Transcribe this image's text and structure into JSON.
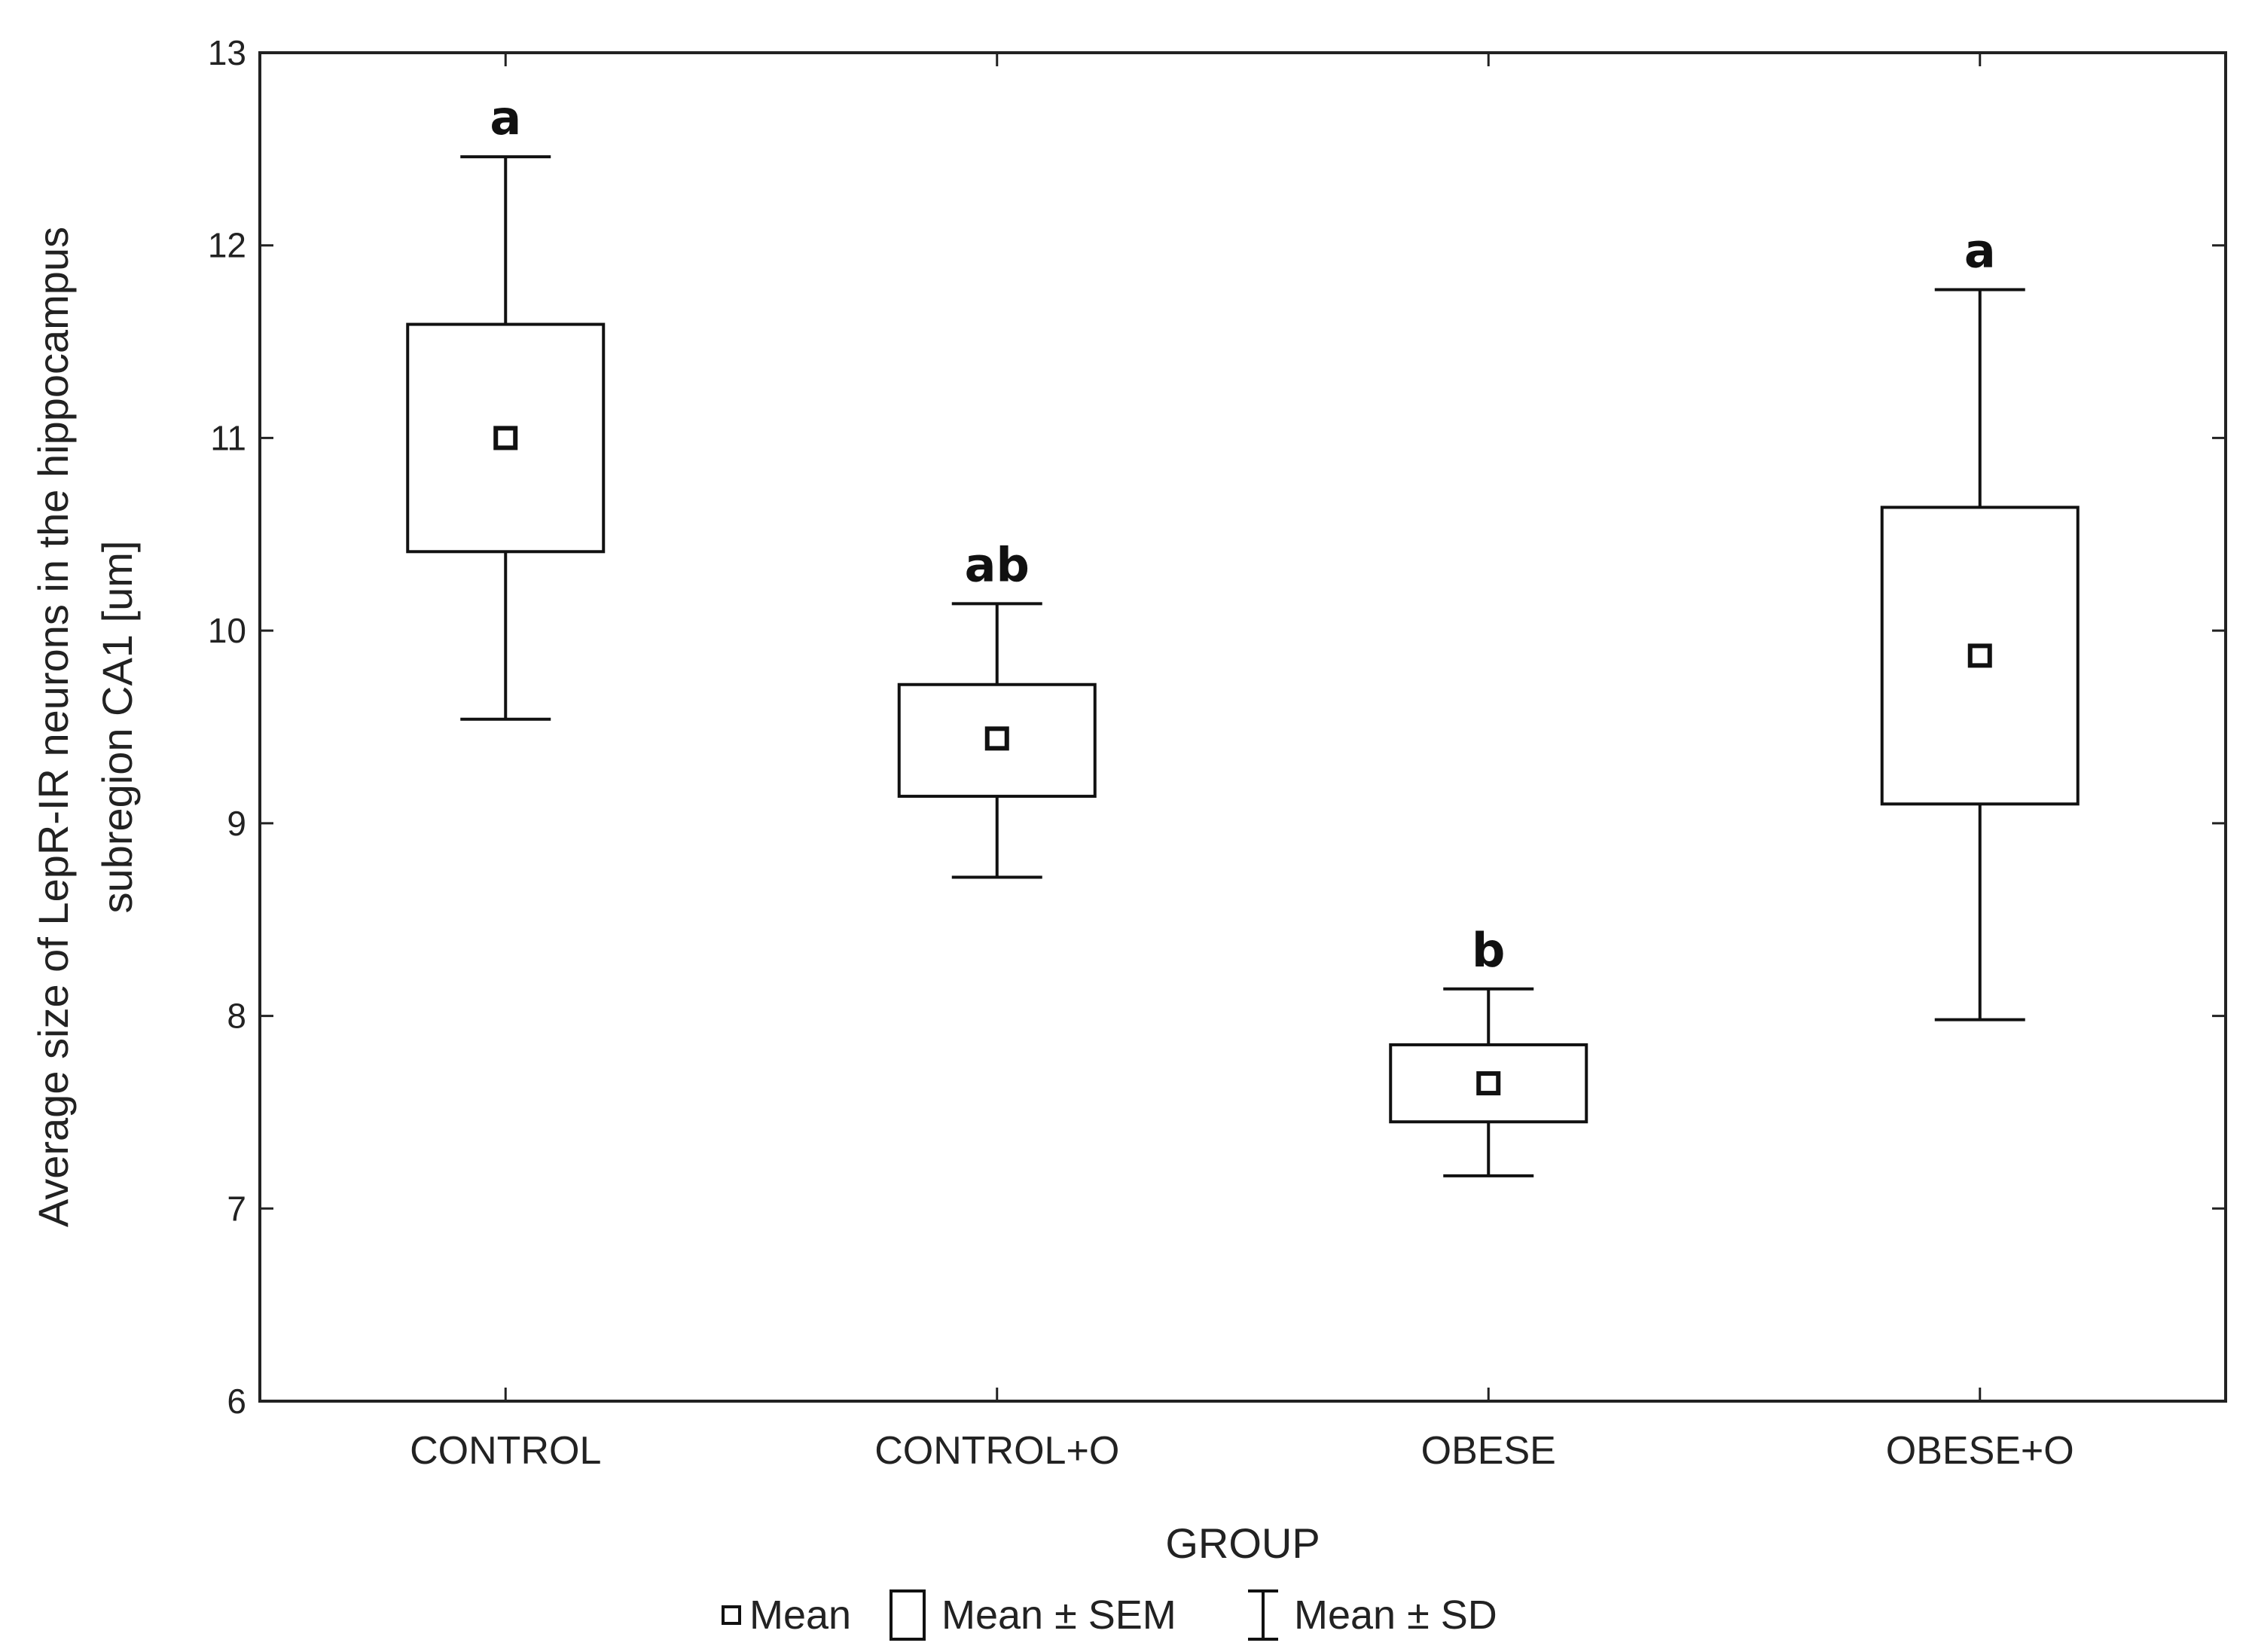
{
  "chart_data": {
    "type": "box",
    "title": "",
    "xlabel": "GROUP",
    "ylabel_lines": [
      "Average size of LepR-IR neurons in the hippocampus",
      "subregion CA1 [um]"
    ],
    "ylim": [
      6,
      13
    ],
    "yticks": [
      6,
      7,
      8,
      9,
      10,
      11,
      12,
      13
    ],
    "categories": [
      "CONTROL",
      "CONTROL+O",
      "OBESE",
      "OBESE+O"
    ],
    "mean": [
      11.0,
      9.44,
      7.65,
      9.87
    ],
    "sem_low": [
      10.41,
      9.14,
      7.45,
      9.1
    ],
    "sem_high": [
      11.59,
      9.72,
      7.85,
      10.64
    ],
    "sd_low": [
      9.54,
      8.72,
      7.17,
      7.98
    ],
    "sd_high": [
      12.46,
      10.14,
      8.14,
      11.77
    ],
    "significance": [
      "a",
      "ab",
      "b",
      "a"
    ],
    "legend": {
      "mean": "Mean",
      "sem": "Mean ± SEM",
      "sd": "Mean ± SD"
    }
  }
}
